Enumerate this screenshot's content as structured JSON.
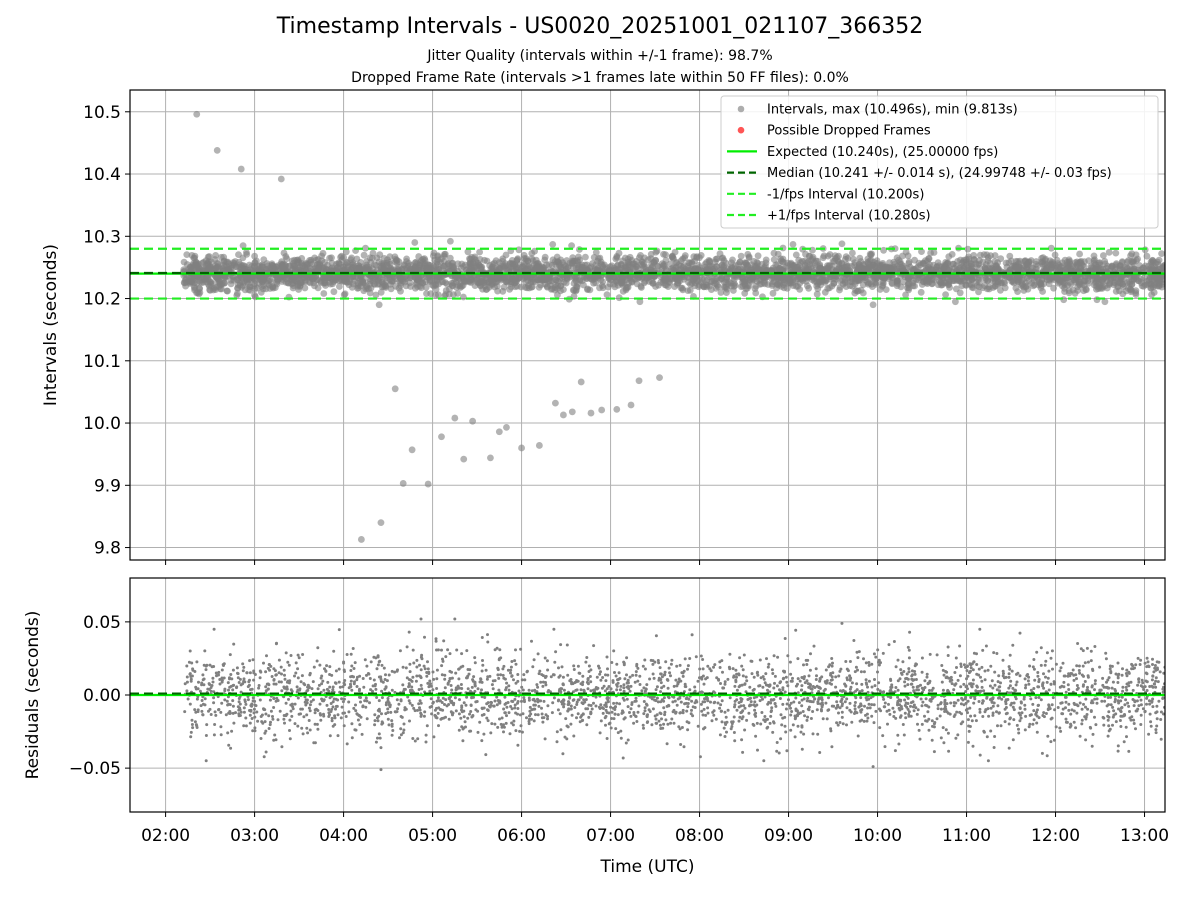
{
  "header": {
    "title": "Timestamp Intervals - US0020_20251001_021107_366352",
    "subtitle_1": "Jitter Quality (intervals within +/-1 frame): 98.7%",
    "subtitle_2": "Dropped Frame Rate (intervals >1 frames late within 50 FF files): 0.0%"
  },
  "colors": {
    "points": "#808080",
    "dropped": "#ff5555",
    "expected": "#00ee00",
    "median": "#006400",
    "interval": "#22ee22",
    "grid": "#b0b0b0"
  },
  "chart_data": [
    {
      "type": "scatter",
      "panel": "intervals",
      "ylabel": "Intervals (seconds)",
      "xlabel": "",
      "x_unit": "hours UTC",
      "xlim": [
        1.6,
        13.23
      ],
      "ylim": [
        9.78,
        10.535
      ],
      "yticks": [
        9.8,
        9.9,
        10.0,
        10.1,
        10.2,
        10.3,
        10.4,
        10.5
      ],
      "ytick_labels": [
        "9.8",
        "9.9",
        "10.0",
        "10.1",
        "10.2",
        "10.3",
        "10.4",
        "10.5"
      ],
      "grid": true,
      "legend_position": "top-right",
      "legend": [
        {
          "label": "Intervals, max (10.496s), min (9.813s)",
          "kind": "marker",
          "color": "#999999"
        },
        {
          "label": "Possible Dropped Frames",
          "kind": "marker",
          "color": "#ff5555"
        },
        {
          "label": "Expected (10.240s), (25.00000 fps)",
          "kind": "line",
          "color": "#00ee00"
        },
        {
          "label": "Median (10.241 +/- 0.014 s), (24.99748 +/- 0.03 fps)",
          "kind": "dash",
          "color": "#006400"
        },
        {
          "label": "-1/fps Interval (10.200s)",
          "kind": "dash",
          "color": "#22ee22"
        },
        {
          "label": "+1/fps Interval (10.280s)",
          "kind": "dash",
          "color": "#22ee22"
        }
      ],
      "reference_lines": {
        "expected": 10.24,
        "median": 10.241,
        "minus_1_fps": 10.2,
        "plus_1_fps": 10.28
      },
      "dense_band": {
        "x_start": 2.2,
        "x_end": 13.23,
        "center": 10.24,
        "std": 0.014,
        "count": 3800
      },
      "outliers": [
        {
          "x": 2.35,
          "y": 10.496
        },
        {
          "x": 2.58,
          "y": 10.438
        },
        {
          "x": 2.85,
          "y": 10.408
        },
        {
          "x": 3.3,
          "y": 10.392
        },
        {
          "x": 4.2,
          "y": 9.813
        },
        {
          "x": 4.42,
          "y": 9.84
        },
        {
          "x": 4.58,
          "y": 10.055
        },
        {
          "x": 4.67,
          "y": 9.903
        },
        {
          "x": 4.77,
          "y": 9.957
        },
        {
          "x": 4.95,
          "y": 9.902
        },
        {
          "x": 5.1,
          "y": 9.978
        },
        {
          "x": 5.25,
          "y": 10.008
        },
        {
          "x": 5.35,
          "y": 9.942
        },
        {
          "x": 5.45,
          "y": 10.003
        },
        {
          "x": 5.65,
          "y": 9.944
        },
        {
          "x": 5.75,
          "y": 9.986
        },
        {
          "x": 5.83,
          "y": 9.993
        },
        {
          "x": 6.0,
          "y": 9.96
        },
        {
          "x": 6.2,
          "y": 9.964
        },
        {
          "x": 6.38,
          "y": 10.032
        },
        {
          "x": 6.47,
          "y": 10.013
        },
        {
          "x": 6.57,
          "y": 10.018
        },
        {
          "x": 6.67,
          "y": 10.066
        },
        {
          "x": 6.78,
          "y": 10.016
        },
        {
          "x": 6.9,
          "y": 10.021
        },
        {
          "x": 7.07,
          "y": 10.022
        },
        {
          "x": 7.23,
          "y": 10.029
        },
        {
          "x": 7.32,
          "y": 10.068
        },
        {
          "x": 7.55,
          "y": 10.073
        },
        {
          "x": 4.4,
          "y": 10.19
        },
        {
          "x": 9.95,
          "y": 10.19
        },
        {
          "x": 5.2,
          "y": 10.292
        },
        {
          "x": 4.8,
          "y": 10.29
        },
        {
          "x": 6.35,
          "y": 10.287
        },
        {
          "x": 9.05,
          "y": 10.287
        },
        {
          "x": 9.6,
          "y": 10.288
        }
      ]
    },
    {
      "type": "scatter",
      "panel": "residuals",
      "ylabel": "Residuals (seconds)",
      "xlabel": "Time (UTC)",
      "x_unit": "hours UTC",
      "xlim": [
        1.6,
        13.23
      ],
      "ylim": [
        -0.08,
        0.08
      ],
      "yticks": [
        -0.05,
        0.0,
        0.05
      ],
      "ytick_labels": [
        "−0.05",
        "0.00",
        "0.05"
      ],
      "xticks": [
        2,
        3,
        4,
        5,
        6,
        7,
        8,
        9,
        10,
        11,
        12,
        13
      ],
      "xtick_labels": [
        "02:00",
        "03:00",
        "04:00",
        "05:00",
        "06:00",
        "07:00",
        "08:00",
        "09:00",
        "10:00",
        "11:00",
        "12:00",
        "13:00"
      ],
      "grid": true,
      "reference_lines": {
        "expected": 0.0,
        "median": 0.001
      },
      "dense_band": {
        "x_start": 2.2,
        "x_end": 13.23,
        "center": 0.0,
        "std": 0.0145,
        "count": 3200
      },
      "outliers": [
        {
          "x": 4.42,
          "y": -0.051
        },
        {
          "x": 4.87,
          "y": 0.052
        },
        {
          "x": 5.25,
          "y": 0.052
        },
        {
          "x": 9.95,
          "y": -0.049
        },
        {
          "x": 9.6,
          "y": 0.049
        },
        {
          "x": 4.42,
          "y": -0.036
        }
      ]
    }
  ]
}
